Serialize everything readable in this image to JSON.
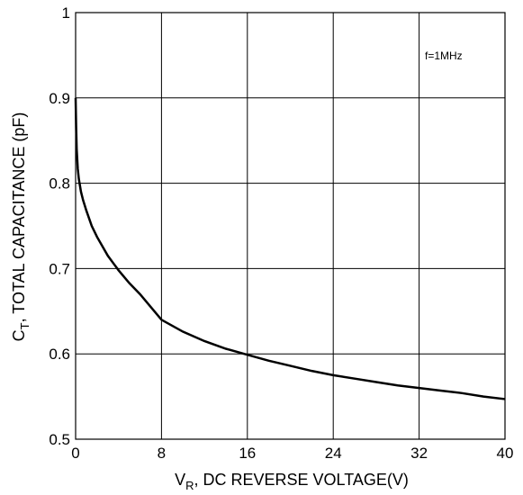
{
  "chart_data": {
    "type": "line",
    "title": "",
    "annotation": "f=1MHz",
    "xlabel": {
      "main": "V",
      "sub": "R",
      "rest": ", DC REVERSE VOLTAGE(V)"
    },
    "ylabel": {
      "main": "C",
      "sub": "T",
      "rest": ", TOTAL CAPACITANCE (pF)"
    },
    "xlim": [
      0,
      40
    ],
    "ylim": [
      0.5,
      1.0
    ],
    "xticks": [
      "0",
      "8",
      "16",
      "24",
      "32",
      "40"
    ],
    "yticks": [
      "0.5",
      "0.6",
      "0.7",
      "0.8",
      "0.9",
      "1"
    ],
    "grid": true,
    "line_color": "#000000",
    "series": [
      {
        "x": [
          0,
          0.05,
          0.1,
          0.2,
          0.3,
          0.5,
          0.7,
          1,
          1.5,
          2,
          3,
          4,
          5,
          6,
          7,
          8,
          10,
          12,
          14,
          16,
          18,
          20,
          22,
          24,
          26,
          28,
          30,
          32,
          34,
          36,
          38,
          40
        ],
        "y": [
          0.9,
          0.865,
          0.84,
          0.817,
          0.805,
          0.79,
          0.78,
          0.768,
          0.75,
          0.737,
          0.715,
          0.698,
          0.683,
          0.67,
          0.655,
          0.64,
          0.626,
          0.615,
          0.606,
          0.599,
          0.592,
          0.586,
          0.58,
          0.575,
          0.571,
          0.567,
          0.563,
          0.56,
          0.557,
          0.554,
          0.55,
          0.547
        ]
      }
    ]
  }
}
